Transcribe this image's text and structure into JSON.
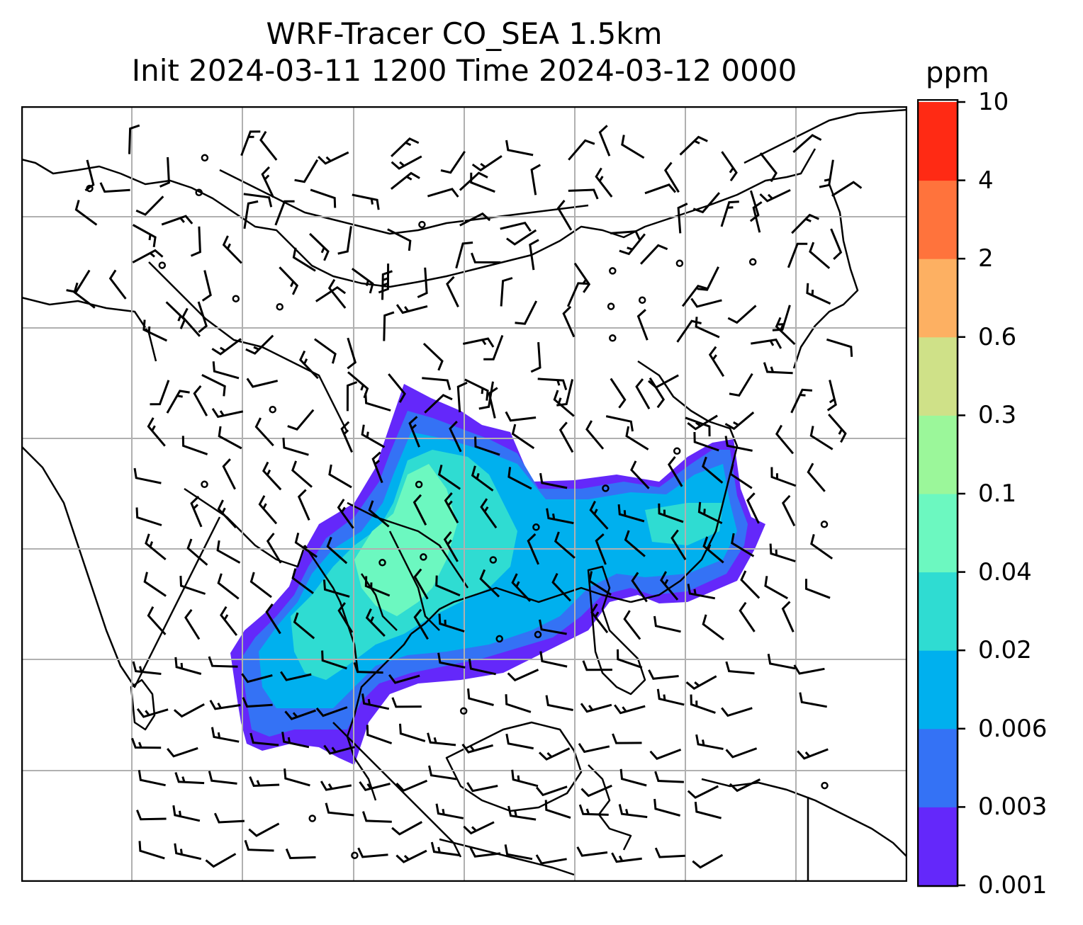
{
  "title_line1": "WRF-Tracer CO_SEA 1.5km",
  "title_line2": "Init 2024-03-11 1200 Time 2024-03-12 0000",
  "colorbar": {
    "unit": "ppm",
    "levels": [
      "0.001",
      "0.003",
      "0.006",
      "0.02",
      "0.04",
      "0.1",
      "0.3",
      "0.6",
      "2",
      "4",
      "10"
    ],
    "colors": [
      "#6428fa",
      "#3472f5",
      "#00b0ee",
      "#2fdcd2",
      "#6cf8c0",
      "#9bf79a",
      "#cfe188",
      "#fdb062",
      "#ff733c",
      "#ff2a14"
    ]
  },
  "map": {
    "field": "CO_SEA tracer concentration",
    "gridlines": "on",
    "overlays": [
      "coastlines",
      "country borders",
      "wind barbs",
      "calm-wind circles"
    ]
  }
}
